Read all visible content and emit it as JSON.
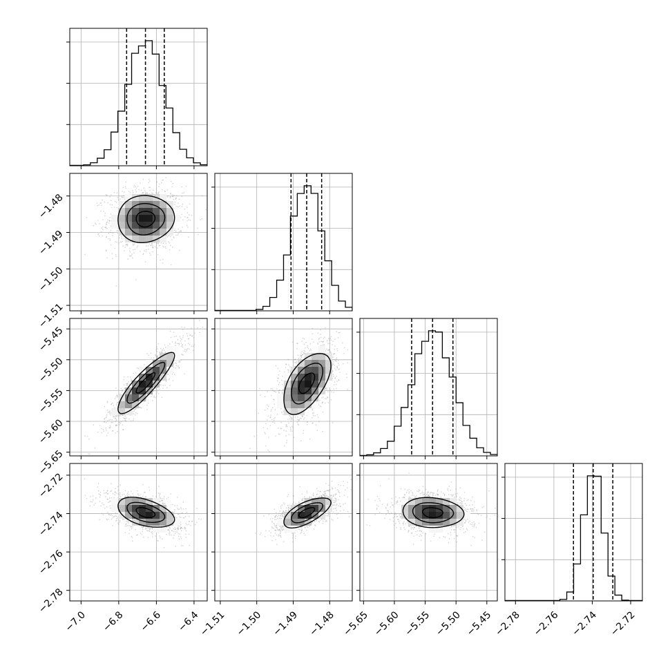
{
  "chart_data": {
    "type": "corner",
    "parameters": [
      {
        "ticks": [
          -7.0,
          -6.8,
          -6.6,
          -6.4
        ],
        "tick_labels": [
          "−7.0",
          "−6.8",
          "−6.6",
          "−6.4"
        ],
        "range": [
          -7.06,
          -6.33
        ],
        "mean": -6.658,
        "sd": 0.1,
        "quantiles": [
          -6.758,
          -6.658,
          -6.558
        ]
      },
      {
        "ticks": [
          -1.51,
          -1.5,
          -1.49,
          -1.48
        ],
        "tick_labels": [
          "−1.51",
          "−1.50",
          "−1.49",
          "−1.48"
        ],
        "range": [
          -1.5115,
          -1.4738
        ],
        "mean": -1.4863,
        "sd": 0.0043,
        "quantiles": [
          -1.4906,
          -1.4863,
          -1.4822
        ]
      },
      {
        "ticks": [
          -5.65,
          -5.6,
          -5.55,
          -5.5,
          -5.45
        ],
        "tick_labels": [
          "−5.65",
          "−5.60",
          "−5.55",
          "−5.50",
          "−5.45"
        ],
        "range": [
          -5.656,
          -5.433
        ],
        "mean": -5.538,
        "sd": 0.033,
        "quantiles": [
          -5.572,
          -5.538,
          -5.505
        ]
      },
      {
        "ticks": [
          -2.78,
          -2.76,
          -2.74,
          -2.72
        ],
        "tick_labels": [
          "−2.78",
          "−2.76",
          "−2.74",
          "−2.72"
        ],
        "range": [
          -2.7855,
          -2.7139
        ],
        "mean": -2.7395,
        "sd": 0.0052,
        "quantiles": [
          -2.7498,
          -2.7395,
          -2.7293
        ]
      }
    ],
    "correlations": [
      [
        1,
        0.05,
        0.88,
        -0.45
      ],
      [
        0.05,
        1,
        0.55,
        0.65
      ],
      [
        0.88,
        0.55,
        1,
        -0.1
      ],
      [
        -0.45,
        0.65,
        -0.1,
        1
      ]
    ],
    "histogram_bins": 20,
    "contour_levels": [
      0.5,
      1.0,
      1.5
    ],
    "grid": true,
    "quantile_lines": "dashed",
    "colors": {
      "lines": "#000000",
      "grid": "#b0b0b0",
      "points": "#999999"
    }
  }
}
